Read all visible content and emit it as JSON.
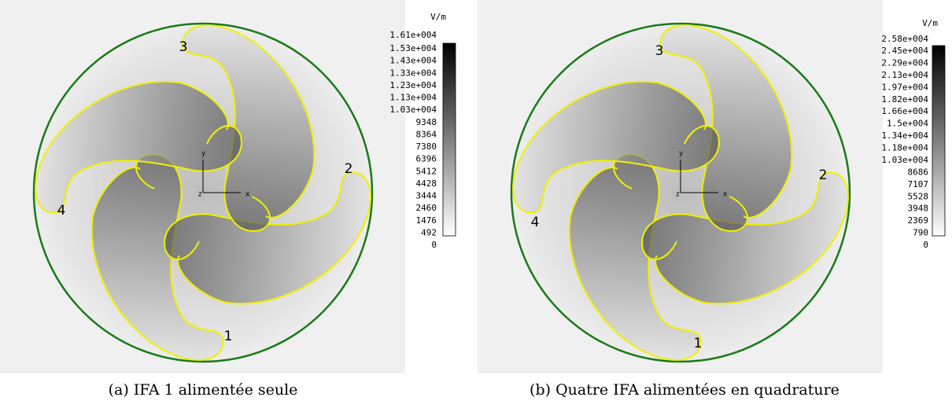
{
  "panels": [
    {
      "caption": "(a)  IFA 1 alimentée seule",
      "unit": "V/m",
      "scale_labels": [
        "1.61e+004",
        "1.53e+004",
        "1.43e+004",
        "1.33e+004",
        "1.23e+004",
        "1.13e+004",
        "1.03e+004",
        "9348",
        "8364",
        "7380",
        "6396",
        "5412",
        "4428",
        "3444",
        "2460",
        "1476",
        "492",
        "0"
      ],
      "ports": [
        "1",
        "2",
        "3",
        "4"
      ],
      "axes": [
        "x",
        "y",
        "z"
      ]
    },
    {
      "caption": "(b)  Quatre IFA alimentées en quadrature",
      "unit": "V/m",
      "scale_labels": [
        "2.58e+004",
        "2.45e+004",
        "2.29e+004",
        "2.13e+004",
        "1.97e+004",
        "1.82e+004",
        "1.66e+004",
        "1.5e+004",
        "1.34e+004",
        "1.18e+004",
        "1.03e+004",
        "8686",
        "7107",
        "5528",
        "3948",
        "2369",
        "790",
        "0"
      ],
      "ports": [
        "1",
        "2",
        "3",
        "4"
      ],
      "axes": [
        "x",
        "y",
        "z"
      ]
    }
  ]
}
